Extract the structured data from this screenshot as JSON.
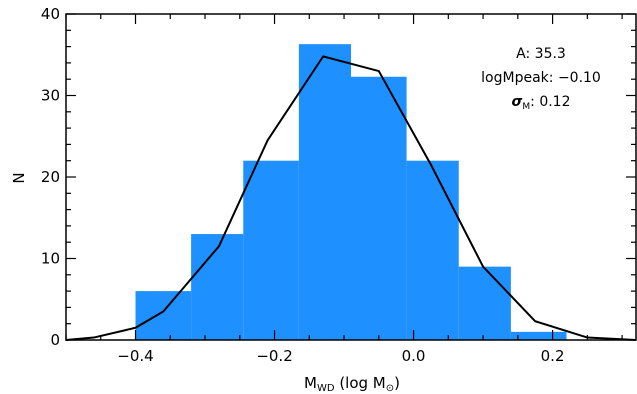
{
  "chart_data": {
    "type": "bar",
    "title": "",
    "xlabel": {
      "main": "M",
      "sub": "WD",
      "rest": " (log M",
      "sun": "⊙",
      "close": ")"
    },
    "ylabel": "N",
    "xlim": [
      -0.5,
      0.32
    ],
    "ylim": [
      0,
      40
    ],
    "x_ticks": [
      -0.4,
      -0.2,
      0.0,
      0.2
    ],
    "x_tick_labels": [
      "−0.4",
      "−0.2",
      "0.0",
      "0.2"
    ],
    "y_ticks": [
      0,
      10,
      20,
      30,
      40
    ],
    "y_tick_labels": [
      "0",
      "10",
      "20",
      "30",
      "40"
    ],
    "bar_color": "#1e90ff",
    "bins": [
      {
        "x0": -0.4,
        "x1": -0.32,
        "value": 6
      },
      {
        "x0": -0.32,
        "x1": -0.245,
        "value": 13
      },
      {
        "x0": -0.245,
        "x1": -0.165,
        "value": 22
      },
      {
        "x0": -0.165,
        "x1": -0.09,
        "value": 36.3
      },
      {
        "x0": -0.09,
        "x1": -0.01,
        "value": 32.3
      },
      {
        "x0": -0.01,
        "x1": 0.065,
        "value": 22
      },
      {
        "x0": 0.065,
        "x1": 0.14,
        "value": 9
      },
      {
        "x0": 0.14,
        "x1": 0.22,
        "value": 1
      }
    ],
    "fit_curve": {
      "color": "#000000",
      "x": [
        -0.5,
        -0.46,
        -0.4,
        -0.36,
        -0.28,
        -0.21,
        -0.13,
        -0.05,
        0.025,
        0.1,
        0.175,
        0.25,
        0.32
      ],
      "y": [
        0,
        0.3,
        1.5,
        3.5,
        11.5,
        24.5,
        34.8,
        33.0,
        21.5,
        9.0,
        2.3,
        0.3,
        0
      ]
    },
    "annotations": {
      "a_label": "A:",
      "a_value": "35.3",
      "peak_label": "logMpeak:",
      "peak_value": "−0.10",
      "sigma_symbol": "σ",
      "sigma_sub": "M",
      "sigma_value": ": 0.12"
    }
  }
}
